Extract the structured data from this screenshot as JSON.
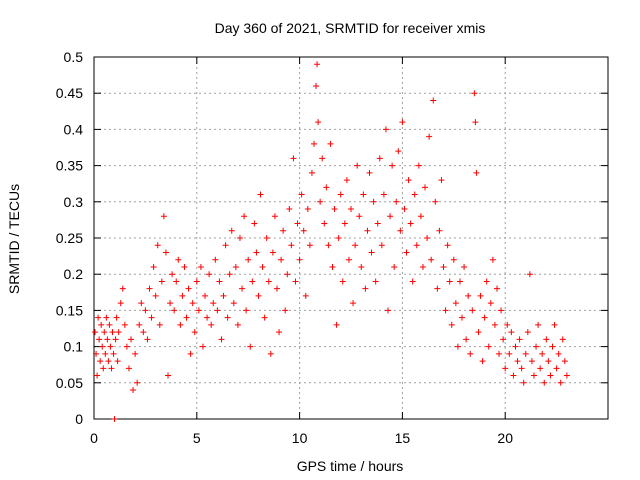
{
  "chart_data": {
    "type": "scatter",
    "title": "Day 360 of 2021, SRMTID for receiver xmis",
    "xlabel": "GPS time / hours",
    "ylabel": "SRMTID / TECUs",
    "xlim": [
      0,
      25
    ],
    "ylim": [
      0,
      0.5
    ],
    "xticks": [
      0,
      5,
      10,
      15,
      20
    ],
    "xtick_labels": [
      "0",
      "5",
      "10",
      "15",
      "20"
    ],
    "yticks": [
      0,
      0.05,
      0.1,
      0.15,
      0.2,
      0.25,
      0.3,
      0.35,
      0.4,
      0.45,
      0.5
    ],
    "ytick_labels": [
      "0",
      "0.05",
      "0.1",
      "0.15",
      "0.2",
      "0.25",
      "0.3",
      "0.35",
      "0.4",
      "0.45",
      "0.5"
    ],
    "grid": true,
    "marker": "+",
    "color": "#ff0000",
    "series": [
      {
        "name": "SRMTID",
        "points": [
          [
            0.05,
            0.12
          ],
          [
            0.1,
            0.09
          ],
          [
            0.15,
            0.06
          ],
          [
            0.2,
            0.14
          ],
          [
            0.25,
            0.11
          ],
          [
            0.3,
            0.08
          ],
          [
            0.35,
            0.13
          ],
          [
            0.4,
            0.1
          ],
          [
            0.45,
            0.07
          ],
          [
            0.5,
            0.12
          ],
          [
            0.55,
            0.09
          ],
          [
            0.6,
            0.14
          ],
          [
            0.65,
            0.11
          ],
          [
            0.7,
            0.08
          ],
          [
            0.75,
            0.13
          ],
          [
            0.8,
            0.1
          ],
          [
            0.85,
            0.07
          ],
          [
            0.9,
            0.12
          ],
          [
            0.95,
            0.09
          ],
          [
            1.0,
            0.0
          ],
          [
            1.05,
            0.11
          ],
          [
            1.1,
            0.14
          ],
          [
            1.15,
            0.08
          ],
          [
            1.2,
            0.12
          ],
          [
            1.3,
            0.16
          ],
          [
            1.4,
            0.18
          ],
          [
            1.5,
            0.13
          ],
          [
            1.6,
            0.1
          ],
          [
            1.7,
            0.07
          ],
          [
            1.8,
            0.11
          ],
          [
            1.9,
            0.04
          ],
          [
            2.0,
            0.09
          ],
          [
            2.1,
            0.05
          ],
          [
            2.2,
            0.13
          ],
          [
            2.3,
            0.16
          ],
          [
            2.4,
            0.12
          ],
          [
            2.5,
            0.15
          ],
          [
            2.6,
            0.11
          ],
          [
            2.7,
            0.18
          ],
          [
            2.8,
            0.14
          ],
          [
            2.9,
            0.21
          ],
          [
            3.0,
            0.17
          ],
          [
            3.1,
            0.24
          ],
          [
            3.2,
            0.13
          ],
          [
            3.3,
            0.19
          ],
          [
            3.4,
            0.28
          ],
          [
            3.5,
            0.23
          ],
          [
            3.6,
            0.06
          ],
          [
            3.7,
            0.16
          ],
          [
            3.8,
            0.2
          ],
          [
            3.9,
            0.15
          ],
          [
            4.0,
            0.19
          ],
          [
            4.1,
            0.22
          ],
          [
            4.2,
            0.13
          ],
          [
            4.3,
            0.17
          ],
          [
            4.4,
            0.21
          ],
          [
            4.5,
            0.14
          ],
          [
            4.6,
            0.18
          ],
          [
            4.7,
            0.09
          ],
          [
            4.8,
            0.16
          ],
          [
            4.9,
            0.12
          ],
          [
            5.0,
            0.19
          ],
          [
            5.1,
            0.15
          ],
          [
            5.2,
            0.21
          ],
          [
            5.3,
            0.1
          ],
          [
            5.4,
            0.17
          ],
          [
            5.5,
            0.14
          ],
          [
            5.6,
            0.2
          ],
          [
            5.7,
            0.13
          ],
          [
            5.8,
            0.16
          ],
          [
            5.9,
            0.22
          ],
          [
            6.0,
            0.15
          ],
          [
            6.1,
            0.19
          ],
          [
            6.2,
            0.11
          ],
          [
            6.3,
            0.17
          ],
          [
            6.4,
            0.24
          ],
          [
            6.5,
            0.14
          ],
          [
            6.6,
            0.2
          ],
          [
            6.7,
            0.26
          ],
          [
            6.8,
            0.16
          ],
          [
            6.9,
            0.21
          ],
          [
            7.0,
            0.13
          ],
          [
            7.1,
            0.25
          ],
          [
            7.2,
            0.18
          ],
          [
            7.3,
            0.28
          ],
          [
            7.4,
            0.15
          ],
          [
            7.5,
            0.22
          ],
          [
            7.6,
            0.1
          ],
          [
            7.7,
            0.19
          ],
          [
            7.8,
            0.27
          ],
          [
            7.9,
            0.23
          ],
          [
            8.0,
            0.17
          ],
          [
            8.1,
            0.31
          ],
          [
            8.2,
            0.21
          ],
          [
            8.3,
            0.14
          ],
          [
            8.4,
            0.25
          ],
          [
            8.5,
            0.19
          ],
          [
            8.6,
            0.09
          ],
          [
            8.7,
            0.23
          ],
          [
            8.8,
            0.28
          ],
          [
            8.9,
            0.18
          ],
          [
            9.0,
            0.12
          ],
          [
            9.1,
            0.22
          ],
          [
            9.2,
            0.26
          ],
          [
            9.3,
            0.15
          ],
          [
            9.4,
            0.2
          ],
          [
            9.5,
            0.29
          ],
          [
            9.6,
            0.24
          ],
          [
            9.7,
            0.36
          ],
          [
            9.8,
            0.19
          ],
          [
            9.9,
            0.27
          ],
          [
            10.0,
            0.22
          ],
          [
            10.1,
            0.31
          ],
          [
            10.2,
            0.26
          ],
          [
            10.3,
            0.17
          ],
          [
            10.4,
            0.29
          ],
          [
            10.5,
            0.24
          ],
          [
            10.6,
            0.34
          ],
          [
            10.7,
            0.38
          ],
          [
            10.8,
            0.46
          ],
          [
            10.85,
            0.49
          ],
          [
            10.9,
            0.41
          ],
          [
            11.0,
            0.3
          ],
          [
            11.1,
            0.36
          ],
          [
            11.2,
            0.27
          ],
          [
            11.3,
            0.32
          ],
          [
            11.4,
            0.24
          ],
          [
            11.5,
            0.38
          ],
          [
            11.6,
            0.21
          ],
          [
            11.7,
            0.29
          ],
          [
            11.8,
            0.13
          ],
          [
            11.9,
            0.25
          ],
          [
            12.0,
            0.31
          ],
          [
            12.1,
            0.19
          ],
          [
            12.2,
            0.27
          ],
          [
            12.3,
            0.33
          ],
          [
            12.4,
            0.22
          ],
          [
            12.5,
            0.29
          ],
          [
            12.6,
            0.16
          ],
          [
            12.7,
            0.24
          ],
          [
            12.8,
            0.35
          ],
          [
            12.9,
            0.28
          ],
          [
            13.0,
            0.21
          ],
          [
            13.1,
            0.31
          ],
          [
            13.2,
            0.18
          ],
          [
            13.3,
            0.26
          ],
          [
            13.4,
            0.34
          ],
          [
            13.5,
            0.23
          ],
          [
            13.6,
            0.3
          ],
          [
            13.7,
            0.19
          ],
          [
            13.8,
            0.27
          ],
          [
            13.9,
            0.36
          ],
          [
            14.0,
            0.24
          ],
          [
            14.1,
            0.31
          ],
          [
            14.2,
            0.4
          ],
          [
            14.3,
            0.15
          ],
          [
            14.4,
            0.28
          ],
          [
            14.5,
            0.35
          ],
          [
            14.6,
            0.21
          ],
          [
            14.7,
            0.3
          ],
          [
            14.8,
            0.37
          ],
          [
            14.9,
            0.26
          ],
          [
            15.0,
            0.41
          ],
          [
            15.1,
            0.29
          ],
          [
            15.2,
            0.23
          ],
          [
            15.3,
            0.33
          ],
          [
            15.4,
            0.27
          ],
          [
            15.5,
            0.19
          ],
          [
            15.6,
            0.31
          ],
          [
            15.7,
            0.24
          ],
          [
            15.8,
            0.35
          ],
          [
            15.9,
            0.28
          ],
          [
            16.0,
            0.21
          ],
          [
            16.1,
            0.32
          ],
          [
            16.2,
            0.25
          ],
          [
            16.3,
            0.39
          ],
          [
            16.4,
            0.22
          ],
          [
            16.5,
            0.44
          ],
          [
            16.6,
            0.3
          ],
          [
            16.7,
            0.18
          ],
          [
            16.8,
            0.26
          ],
          [
            16.9,
            0.33
          ],
          [
            17.0,
            0.21
          ],
          [
            17.1,
            0.15
          ],
          [
            17.2,
            0.24
          ],
          [
            17.3,
            0.19
          ],
          [
            17.4,
            0.13
          ],
          [
            17.5,
            0.22
          ],
          [
            17.6,
            0.16
          ],
          [
            17.7,
            0.1
          ],
          [
            17.8,
            0.19
          ],
          [
            17.9,
            0.14
          ],
          [
            18.0,
            0.21
          ],
          [
            18.1,
            0.11
          ],
          [
            18.2,
            0.17
          ],
          [
            18.3,
            0.09
          ],
          [
            18.4,
            0.15
          ],
          [
            18.5,
            0.45
          ],
          [
            18.55,
            0.41
          ],
          [
            18.6,
            0.34
          ],
          [
            18.7,
            0.12
          ],
          [
            18.8,
            0.17
          ],
          [
            18.9,
            0.08
          ],
          [
            19.0,
            0.14
          ],
          [
            19.1,
            0.19
          ],
          [
            19.2,
            0.1
          ],
          [
            19.3,
            0.16
          ],
          [
            19.4,
            0.22
          ],
          [
            19.5,
            0.13
          ],
          [
            19.6,
            0.18
          ],
          [
            19.7,
            0.09
          ],
          [
            19.8,
            0.15
          ],
          [
            19.9,
            0.11
          ],
          [
            20.0,
            0.07
          ],
          [
            20.1,
            0.13
          ],
          [
            20.2,
            0.09
          ],
          [
            20.3,
            0.12
          ],
          [
            20.4,
            0.06
          ],
          [
            20.5,
            0.1
          ],
          [
            20.6,
            0.08
          ],
          [
            20.7,
            0.11
          ],
          [
            20.8,
            0.07
          ],
          [
            20.9,
            0.05
          ],
          [
            21.0,
            0.09
          ],
          [
            21.1,
            0.12
          ],
          [
            21.2,
            0.2
          ],
          [
            21.3,
            0.08
          ],
          [
            21.4,
            0.06
          ],
          [
            21.5,
            0.1
          ],
          [
            21.6,
            0.13
          ],
          [
            21.7,
            0.07
          ],
          [
            21.8,
            0.09
          ],
          [
            21.9,
            0.05
          ],
          [
            22.0,
            0.11
          ],
          [
            22.1,
            0.08
          ],
          [
            22.2,
            0.06
          ],
          [
            22.3,
            0.1
          ],
          [
            22.4,
            0.13
          ],
          [
            22.5,
            0.07
          ],
          [
            22.6,
            0.09
          ],
          [
            22.7,
            0.05
          ],
          [
            22.8,
            0.11
          ],
          [
            22.9,
            0.08
          ],
          [
            23.0,
            0.06
          ]
        ]
      }
    ]
  }
}
